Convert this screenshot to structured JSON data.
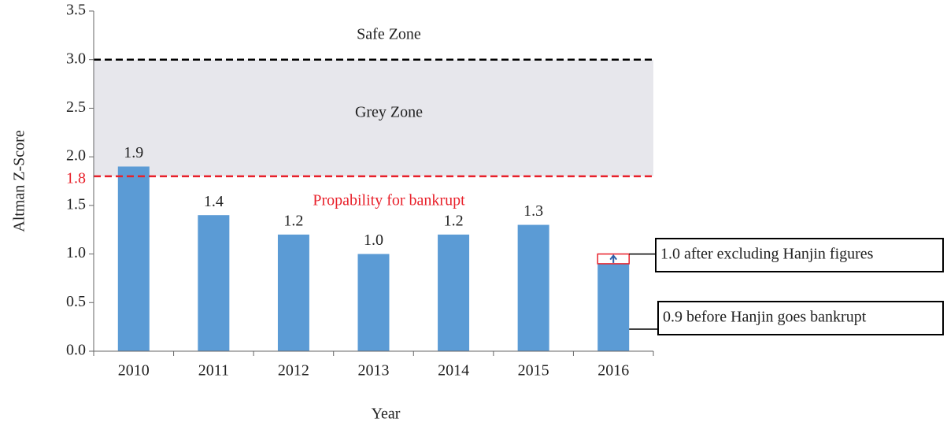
{
  "chart_data": {
    "type": "bar",
    "x_label": "Year",
    "y_label": "Altman Z-Score",
    "categories": [
      "2010",
      "2011",
      "2012",
      "2013",
      "2014",
      "2015",
      "2016"
    ],
    "values": [
      1.9,
      1.4,
      1.2,
      1.0,
      1.2,
      1.3,
      0.9
    ],
    "value_labels": [
      "1.9",
      "1.4",
      "1.2",
      "1.0",
      "1.2",
      "1.3",
      null
    ],
    "color": "#5b9bd5",
    "ylim": [
      0,
      3.5
    ],
    "yticks": [
      {
        "value": 0,
        "label": "0.0"
      },
      0.5,
      {
        "value": 1,
        "label": "1.0"
      },
      1.5,
      {
        "value": 2,
        "label": "2.0"
      },
      2.5,
      {
        "value": 3,
        "label": "3.0"
      },
      3.5
    ],
    "zones": [
      {
        "name": "Safe Zone",
        "from": 3,
        "to": 3.5
      },
      {
        "name": "Grey Zone",
        "from": 1.8,
        "to": 3,
        "fill": "#e7e7ec"
      },
      {
        "name": "Propability for bankrupt",
        "from": 0,
        "to": 1.8,
        "text_color": "#e8202a"
      }
    ],
    "thresholds": [
      {
        "value": 3,
        "color": "#000000"
      },
      {
        "value": 1.8,
        "label": "1.8",
        "color": "#e8202a"
      }
    ],
    "annotations": [
      {
        "text": "1.0 after excluding Hanjin figures",
        "value": 1.0
      },
      {
        "text": "0.9 before Hanjin goes bankrupt",
        "value": 0.9
      }
    ]
  }
}
